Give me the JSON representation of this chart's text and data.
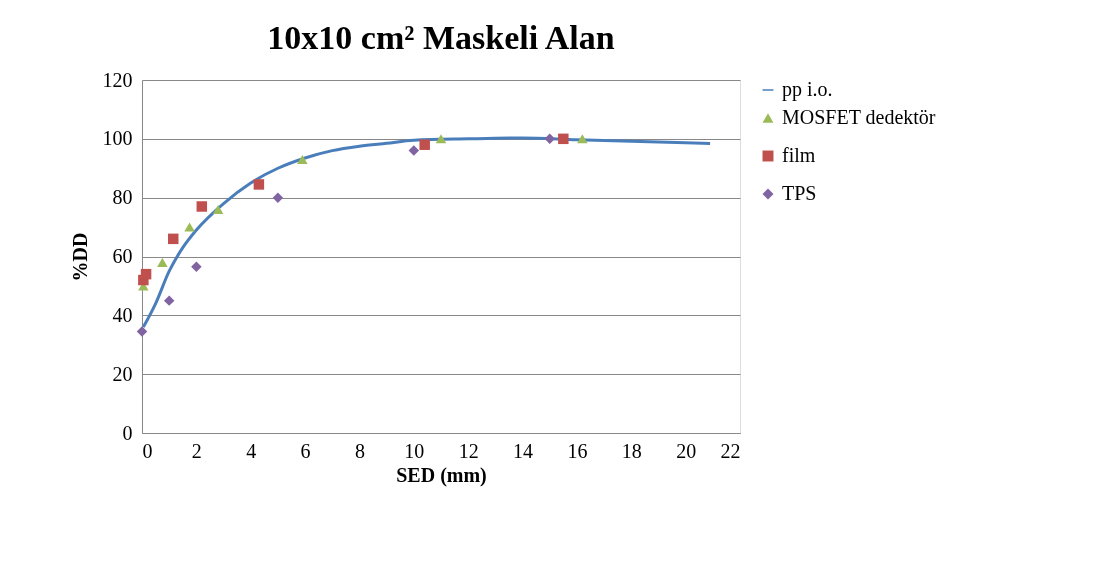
{
  "chart_data": {
    "type": "scatter",
    "title": "10x10 cm² Maskeli Alan",
    "xlabel": "SED (mm)",
    "ylabel": "%DD",
    "xlim": [
      0,
      22
    ],
    "xticks": [
      0,
      2,
      4,
      6,
      8,
      10,
      12,
      14,
      16,
      18,
      20,
      22
    ],
    "ylim": [
      0,
      120
    ],
    "yticks": [
      0,
      20,
      40,
      60,
      80,
      100,
      120
    ],
    "grid": "y",
    "legend": "right",
    "series": [
      {
        "name": "pp i.o.",
        "type": "line",
        "color": "#4a7ebb",
        "marker": "none",
        "line_style": "solid",
        "x": [
          0.05,
          0.5,
          1,
          1.5,
          2,
          3,
          4,
          5,
          6,
          7,
          8,
          9,
          10,
          12,
          14,
          16,
          18,
          20,
          20.9
        ],
        "values": [
          36,
          44,
          55,
          63,
          69,
          78,
          85,
          90,
          93.5,
          96,
          97.5,
          98.5,
          99.5,
          100,
          100.3,
          99.7,
          99.2,
          98.7,
          98.4
        ]
      },
      {
        "name": "MOSFET dedektör",
        "type": "scatter",
        "color": "#9bbb59",
        "marker": "triangle",
        "x": [
          0.05,
          0.75,
          1.75,
          2.8,
          5.9,
          11,
          16.2
        ],
        "values": [
          50,
          58,
          70,
          76,
          93,
          100,
          100
        ]
      },
      {
        "name": "film",
        "type": "scatter",
        "color": "#c0504d",
        "marker": "square",
        "x": [
          0.05,
          0.15,
          1.15,
          2.2,
          4.3,
          10.4,
          15.5
        ],
        "values": [
          52,
          54,
          66,
          77,
          84.5,
          98,
          100
        ]
      },
      {
        "name": "TPS",
        "type": "scatter",
        "color": "#8064a2",
        "marker": "diamond",
        "x": [
          0,
          1,
          2,
          5,
          10,
          15
        ],
        "values": [
          34.5,
          45,
          56.5,
          80,
          96,
          100
        ]
      }
    ]
  }
}
